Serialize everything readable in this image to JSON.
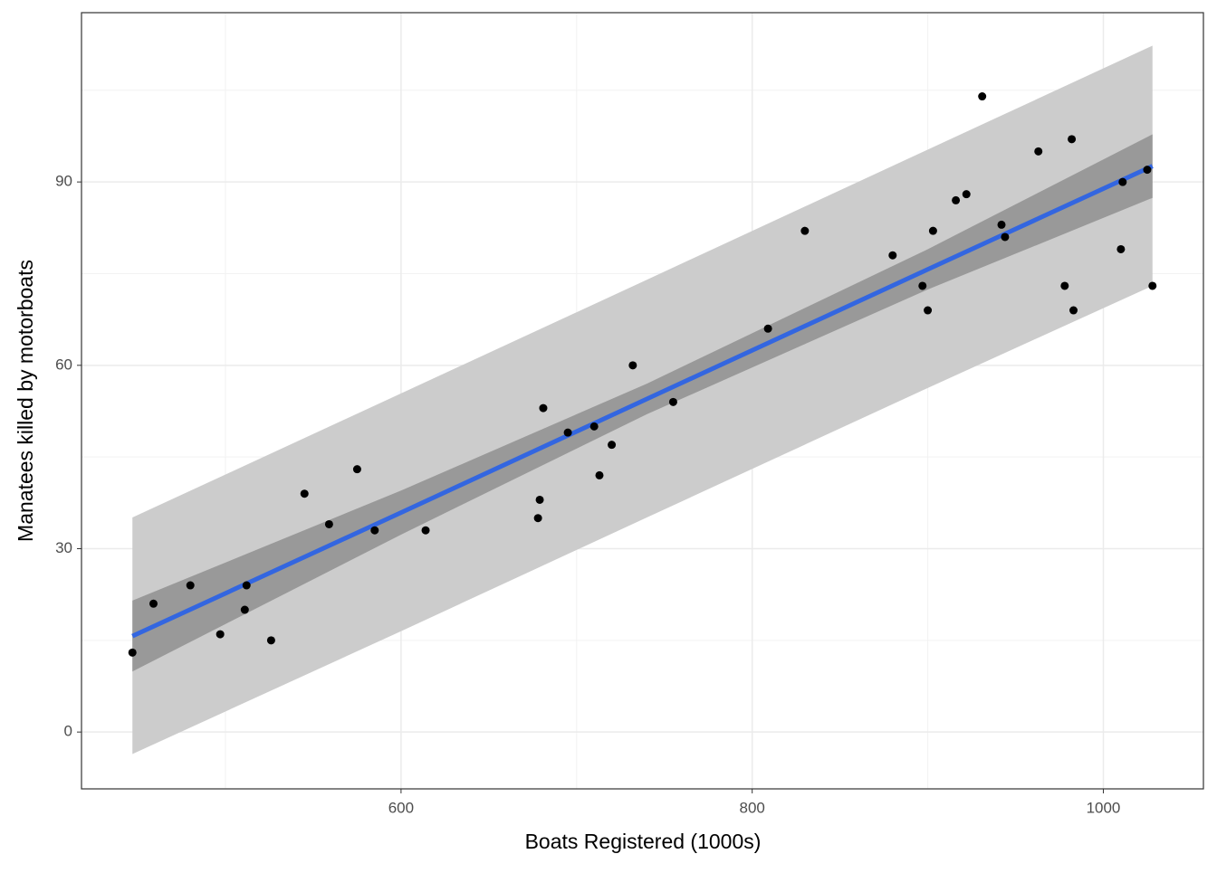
{
  "chart_data": {
    "type": "scatter",
    "xlabel": "Boats Registered (1000s)",
    "ylabel": "Manatees killed by motorboats",
    "x": [
      447,
      459,
      480,
      497,
      511,
      512,
      526,
      545,
      559,
      575,
      585,
      614,
      678,
      679,
      681,
      695,
      710,
      713,
      720,
      732,
      755,
      809,
      830,
      880,
      897,
      900,
      903,
      916,
      922,
      931,
      942,
      944,
      963,
      978,
      982,
      983,
      1010,
      1011,
      1025,
      1028
    ],
    "values": [
      13,
      21,
      24,
      16,
      20,
      24,
      15,
      39,
      34,
      43,
      33,
      33,
      35,
      38,
      53,
      49,
      50,
      42,
      47,
      60,
      54,
      66,
      82,
      78,
      73,
      69,
      82,
      87,
      88,
      104,
      83,
      81,
      95,
      73,
      97,
      69,
      79,
      90,
      92,
      73
    ],
    "color": "#000000",
    "fit": {
      "x": [
        447,
        600,
        740,
        900,
        1028
      ],
      "values": [
        15.7,
        35.9,
        54.5,
        75.7,
        92.6
      ],
      "lower": [
        9.9,
        32.3,
        52.0,
        72.4,
        87.4
      ],
      "upper": [
        21.5,
        39.5,
        57.0,
        79.0,
        97.8
      ],
      "pred_lower": [
        -3.6,
        16.5,
        35.1,
        56.3,
        73.0
      ],
      "pred_upper": [
        35.1,
        55.4,
        74.0,
        95.3,
        112.3
      ],
      "color": "#3366e0",
      "band_color": "#999999",
      "pred_color": "#cccccc"
    },
    "xlim": [
      418,
      1057
    ],
    "ylim": [
      -9.3,
      117.7
    ],
    "xticks": [
      600,
      800,
      1000
    ],
    "yticks": [
      0,
      30,
      60,
      90
    ],
    "xminor": [
      500,
      700,
      900
    ],
    "yminor": [
      15,
      45,
      75,
      105
    ],
    "grid": true
  }
}
